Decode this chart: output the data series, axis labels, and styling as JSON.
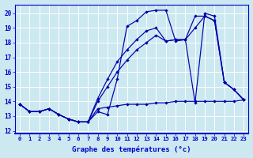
{
  "background_color": "#cce8f0",
  "grid_color": "#ffffff",
  "line_color": "#0000aa",
  "xlim": [
    -0.5,
    23.5
  ],
  "ylim": [
    11.8,
    20.6
  ],
  "yticks": [
    12,
    13,
    14,
    15,
    16,
    17,
    18,
    19,
    20
  ],
  "xticks": [
    0,
    1,
    2,
    3,
    4,
    5,
    6,
    7,
    8,
    9,
    10,
    11,
    12,
    13,
    14,
    15,
    16,
    17,
    18,
    19,
    20,
    21,
    22,
    23
  ],
  "xlabel": "Graphe des températures (°c)",
  "series": [
    [
      13.8,
      13.3,
      13.3,
      13.5,
      13.1,
      12.8,
      12.6,
      12.6,
      13.3,
      13.1,
      15.5,
      19.1,
      19.5,
      20.1,
      20.2,
      20.2,
      18.1,
      18.2,
      13.9,
      20.0,
      19.8,
      15.3,
      14.8,
      14.1
    ],
    [
      13.8,
      13.3,
      13.3,
      13.5,
      13.1,
      12.8,
      12.6,
      12.6,
      14.2,
      15.5,
      16.7,
      17.5,
      18.2,
      18.8,
      19.0,
      18.1,
      18.2,
      18.2,
      19.8,
      19.8,
      19.5,
      15.3,
      14.8,
      14.1
    ],
    [
      13.8,
      13.3,
      13.3,
      13.5,
      13.1,
      12.8,
      12.6,
      12.6,
      14.0,
      15.0,
      16.0,
      16.8,
      17.5,
      18.0,
      18.5,
      18.1,
      18.2,
      18.2,
      19.0,
      19.8,
      19.5,
      15.3,
      14.8,
      14.1
    ],
    [
      13.8,
      13.3,
      13.3,
      13.5,
      13.1,
      12.8,
      12.6,
      12.6,
      13.5,
      13.6,
      13.7,
      13.8,
      13.8,
      13.8,
      13.9,
      13.9,
      14.0,
      14.0,
      14.0,
      14.0,
      14.0,
      14.0,
      14.0,
      14.1
    ]
  ]
}
